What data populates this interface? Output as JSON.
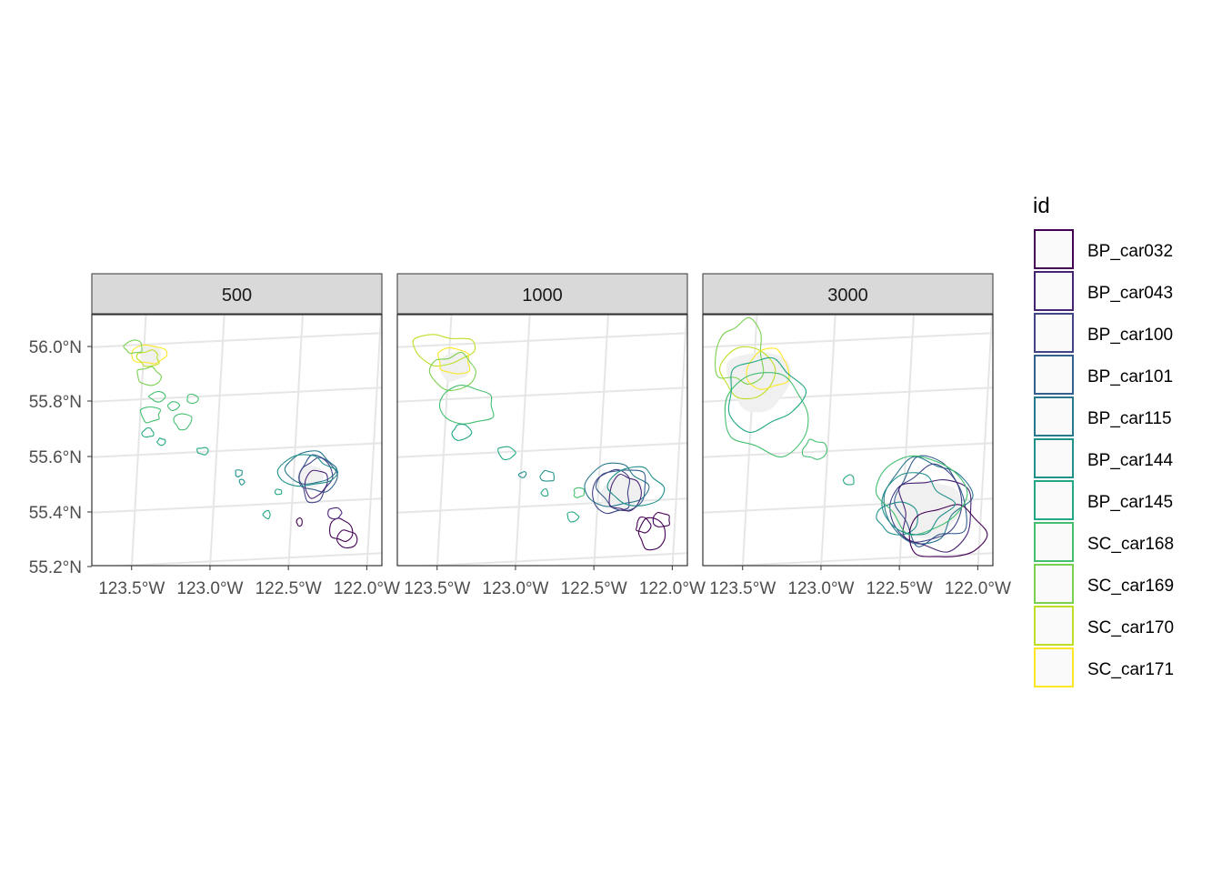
{
  "chart_data": {
    "type": "map",
    "facet_variable_values": [
      "500",
      "1000",
      "3000"
    ],
    "x_ticks": [
      "123.5°W",
      "123.0°W",
      "122.5°W",
      "122.0°W"
    ],
    "x_tick_values": [
      -123.5,
      -123.0,
      -122.5,
      -122.0
    ],
    "y_ticks": [
      "56.0°N",
      "55.8°N",
      "55.6°N",
      "55.4°N",
      "55.2°N"
    ],
    "y_tick_values": [
      56.0,
      55.8,
      55.6,
      55.4,
      55.2
    ],
    "xlim": [
      -123.8,
      -121.95
    ],
    "ylim": [
      55.2,
      56.1
    ],
    "legend": {
      "title": "id",
      "placement": "right",
      "entries": [
        {
          "label": "BP_car032",
          "color": "#440154"
        },
        {
          "label": "BP_car043",
          "color": "#482475"
        },
        {
          "label": "BP_car100",
          "color": "#414487"
        },
        {
          "label": "BP_car101",
          "color": "#355f8d"
        },
        {
          "label": "BP_car115",
          "color": "#2a788e"
        },
        {
          "label": "BP_car144",
          "color": "#21918c"
        },
        {
          "label": "BP_car145",
          "color": "#22a884"
        },
        {
          "label": "SC_car168",
          "color": "#44bf70"
        },
        {
          "label": "SC_car169",
          "color": "#7ad151"
        },
        {
          "label": "SC_car170",
          "color": "#bddf26"
        },
        {
          "label": "SC_car171",
          "color": "#fde725"
        }
      ]
    },
    "fill_color": "#f0f0f0",
    "grid": true
  }
}
